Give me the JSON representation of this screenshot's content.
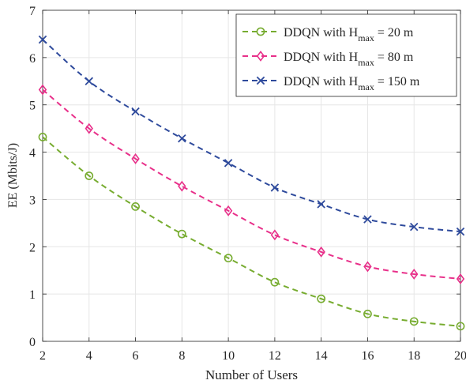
{
  "chart_data": {
    "type": "line",
    "xlabel": "Number of Users",
    "ylabel": "EE (Mbits/J)",
    "x": [
      2,
      4,
      6,
      8,
      10,
      12,
      14,
      16,
      18,
      20
    ],
    "xlim": [
      2,
      20
    ],
    "ylim": [
      0,
      7
    ],
    "xticks": [
      "2",
      "4",
      "6",
      "8",
      "10",
      "12",
      "14",
      "16",
      "18",
      "20"
    ],
    "yticks": [
      "0",
      "1",
      "2",
      "3",
      "4",
      "5",
      "6",
      "7"
    ],
    "grid": true,
    "legend_position": "top-right",
    "series": [
      {
        "name_base": "DDQN with H",
        "name_sub": "max",
        "name_tail": " = 20 m",
        "marker": "circle",
        "color": "#77ac30",
        "values": [
          4.32,
          3.5,
          2.85,
          2.27,
          1.76,
          1.25,
          0.9,
          0.58,
          0.42,
          0.32
        ]
      },
      {
        "name_base": "DDQN with H",
        "name_sub": "max",
        "name_tail": " = 80 m",
        "marker": "diamond",
        "color": "#e8308a",
        "values": [
          5.32,
          4.5,
          3.86,
          3.28,
          2.76,
          2.25,
          1.89,
          1.58,
          1.42,
          1.32
        ]
      },
      {
        "name_base": "DDQN with H",
        "name_sub": "max",
        "name_tail": " = 150 m",
        "marker": "x",
        "color": "#2e4a9c",
        "values": [
          6.38,
          5.5,
          4.86,
          4.29,
          3.77,
          3.25,
          2.9,
          2.58,
          2.42,
          2.32
        ]
      }
    ]
  }
}
